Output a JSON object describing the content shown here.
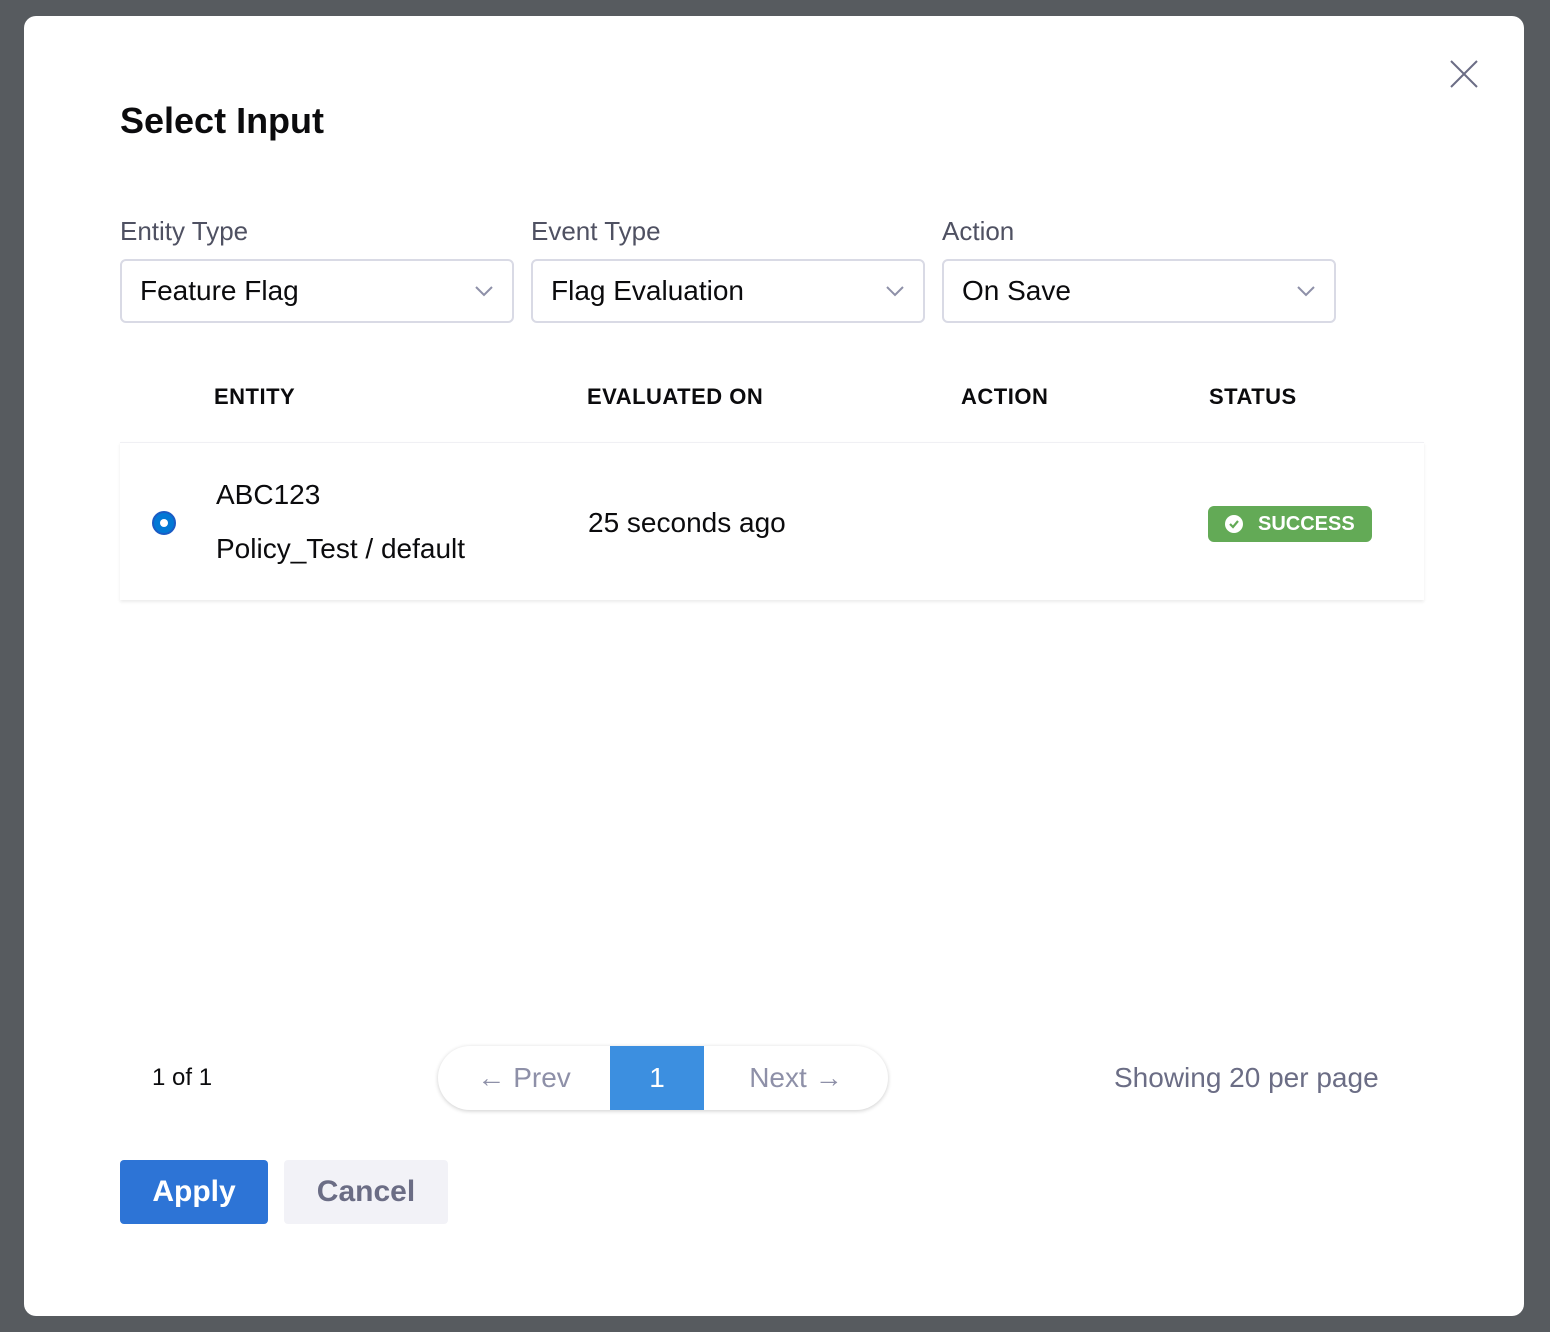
{
  "modal": {
    "title": "Select Input"
  },
  "filters": [
    {
      "label": "Entity Type",
      "value": "Feature Flag"
    },
    {
      "label": "Event Type",
      "value": "Flag Evaluation"
    },
    {
      "label": "Action",
      "value": "On Save"
    }
  ],
  "table": {
    "headers": [
      "ENTITY",
      "EVALUATED ON",
      "ACTION",
      "STATUS"
    ],
    "rows": [
      {
        "entity": "ABC123",
        "scope": "Policy_Test / default",
        "evaluated_on": "25 seconds ago",
        "action": "",
        "status": "SUCCESS",
        "selected": true
      }
    ]
  },
  "pagination": {
    "count": "1 of 1",
    "prev": "Prev",
    "current": "1",
    "next": "Next",
    "showing": "Showing 20 per page"
  },
  "buttons": {
    "apply": "Apply",
    "cancel": "Cancel"
  },
  "colors": {
    "primary": "#2d74d6",
    "success": "#63aa56",
    "page_active": "#3c8fe0"
  }
}
